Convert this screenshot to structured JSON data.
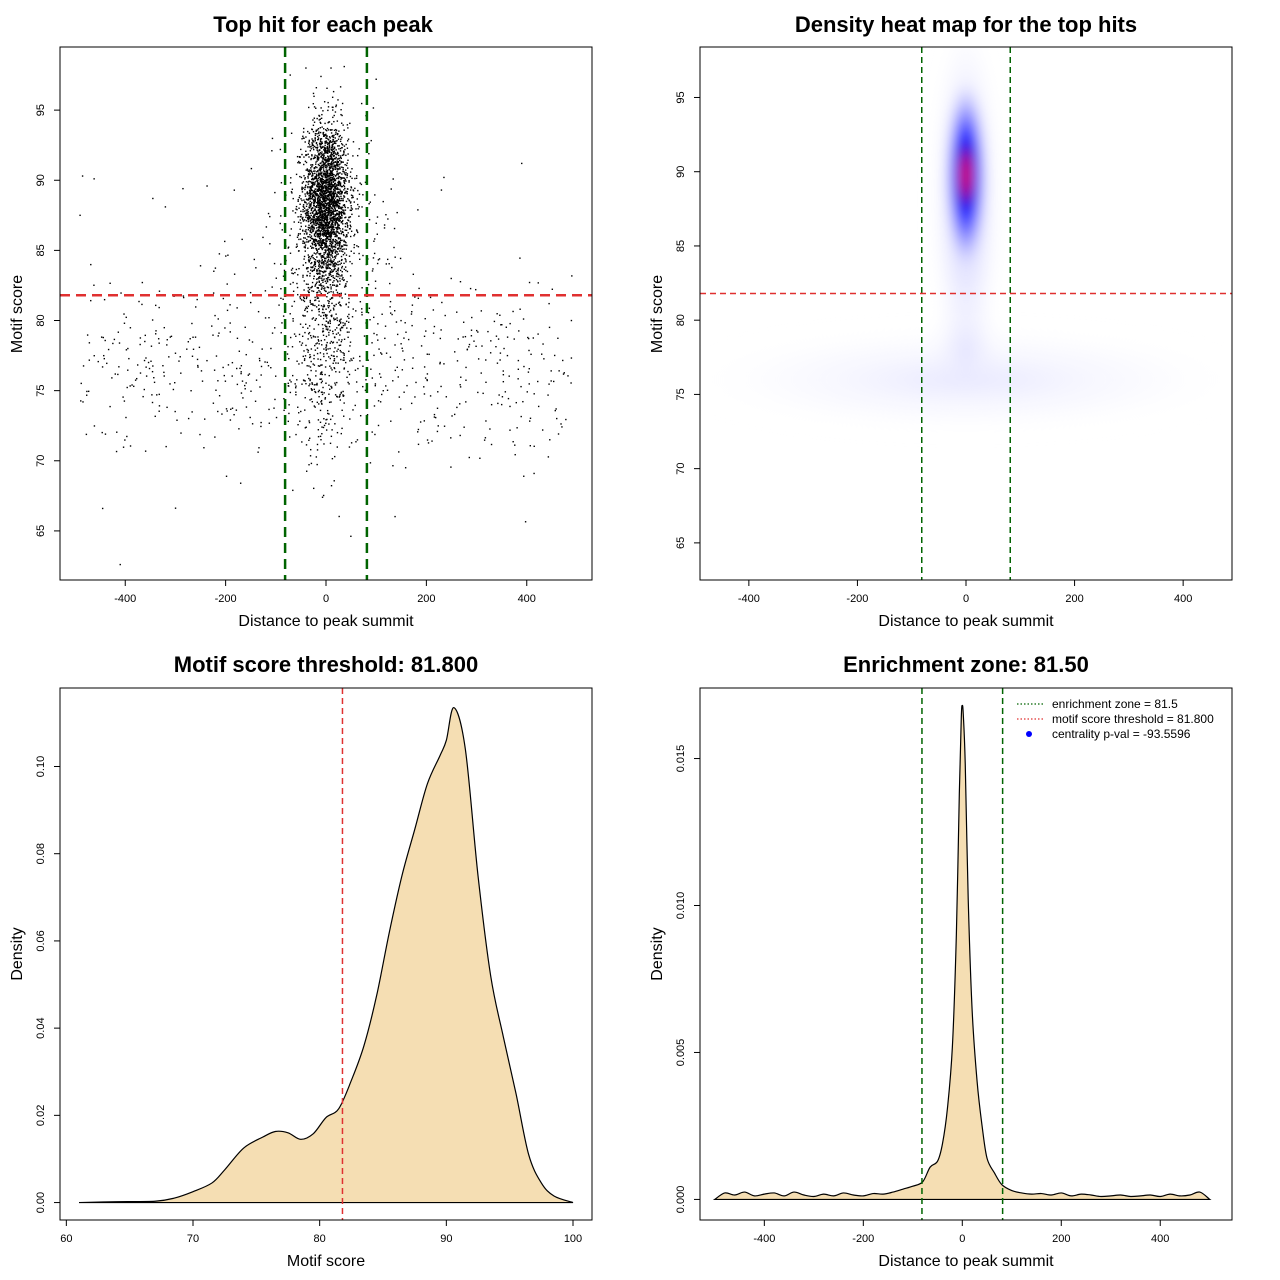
{
  "chart_data": [
    {
      "type": "scatter",
      "title": "Top hit for each peak",
      "xlabel": "Distance to peak summit",
      "ylabel": "Motif score",
      "xlim": [
        -530,
        530
      ],
      "ylim": [
        61.5,
        99.5
      ],
      "xticks": [
        -400,
        -200,
        0,
        200,
        400
      ],
      "yticks": [
        65,
        70,
        75,
        80,
        85,
        90,
        95
      ],
      "vlines": [
        -81.5,
        81.5
      ],
      "hline": 81.8,
      "colors": {
        "points": "#000000",
        "vlines": "#006400",
        "hline": "#e03030"
      },
      "clusters": [
        {
          "count": 2600,
          "x_mean": 0,
          "x_sd": 22,
          "y_mean": 88.5,
          "y_sd": 2.8
        },
        {
          "count": 500,
          "x_mean": 0,
          "x_sd": 30,
          "y_mean": 80,
          "y_sd": 4.5
        },
        {
          "count": 350,
          "x_mean": 0,
          "x_sd": 80,
          "y_mean": 84,
          "y_sd": 4.5
        },
        {
          "count": 600,
          "x_range": [
            -490,
            490
          ],
          "y_mean": 76,
          "y_sd": 3.2
        }
      ],
      "extra_points": [
        [
          -445,
          66.6
        ],
        [
          -410,
          62.6
        ],
        [
          -485,
          90.3
        ],
        [
          -462,
          90.1
        ],
        [
          -490,
          87.5
        ],
        [
          -345,
          88.7
        ],
        [
          -285,
          89.4
        ],
        [
          235,
          90.2
        ],
        [
          390,
          91.2
        ],
        [
          230,
          89.3
        ],
        [
          -320,
          88.1
        ],
        [
          -170,
          68.4
        ],
        [
          -40,
          98
        ],
        [
          10,
          98
        ],
        [
          -10,
          97.4
        ],
        [
          100,
          97.2
        ],
        [
          -250,
          83.9
        ]
      ]
    },
    {
      "type": "heatmap",
      "title": "Density heat map for the top hits",
      "xlabel": "Distance to peak summit",
      "ylabel": "Motif score",
      "xlim": [
        -490,
        490
      ],
      "ylim": [
        62.5,
        98.4
      ],
      "xticks": [
        -400,
        -200,
        0,
        200,
        400
      ],
      "yticks": [
        65,
        70,
        75,
        80,
        85,
        90,
        95
      ],
      "vlines": [
        -81.5,
        81.5
      ],
      "hline": 81.8,
      "color_scale": [
        "#ffffff",
        "#0000ff",
        "#ff0000"
      ],
      "peak": {
        "x": 0,
        "y": 89.5
      },
      "colors": {
        "vlines": "#006400",
        "hline": "#e03030"
      }
    },
    {
      "type": "area",
      "title": "Motif score threshold: 81.800",
      "xlabel": "Motif score",
      "ylabel": "Density",
      "xlim": [
        59.5,
        101.5
      ],
      "ylim": [
        -0.004,
        0.118
      ],
      "xticks": [
        60,
        70,
        80,
        90,
        100
      ],
      "yticks": [
        0.0,
        0.02,
        0.04,
        0.06,
        0.08,
        0.1
      ],
      "ytick_labels": [
        "0.00",
        "0.02",
        "0.04",
        "0.06",
        "0.08",
        "0.10"
      ],
      "vline": 81.8,
      "fill": "#f5deb3",
      "colors": {
        "vline": "#e03030"
      },
      "x": [
        61,
        64,
        67,
        68.5,
        70,
        71.5,
        72.5,
        74,
        75.5,
        76.5,
        77.5,
        78.5,
        79.5,
        80.5,
        81.5,
        82.5,
        83.5,
        84.5,
        85.5,
        86.5,
        87.5,
        88.5,
        89.5,
        90,
        90.6,
        91.5,
        92.5,
        93.5,
        94.5,
        95.5,
        96.5,
        97.5,
        98.5,
        100
      ],
      "y": [
        0.0,
        0.0002,
        0.0003,
        0.001,
        0.0025,
        0.0045,
        0.0075,
        0.0125,
        0.015,
        0.0163,
        0.016,
        0.0145,
        0.0158,
        0.0195,
        0.0215,
        0.028,
        0.036,
        0.0475,
        0.062,
        0.075,
        0.0855,
        0.096,
        0.1025,
        0.106,
        0.1135,
        0.104,
        0.075,
        0.052,
        0.038,
        0.025,
        0.011,
        0.0045,
        0.0015,
        0.0
      ]
    },
    {
      "type": "area",
      "title": "Enrichment zone: 81.50",
      "xlabel": "Distance to peak summit",
      "ylabel": "Density",
      "xlim": [
        -530,
        545
      ],
      "ylim": [
        -0.0007,
        0.0174
      ],
      "xticks": [
        -400,
        -200,
        0,
        200,
        400
      ],
      "yticks": [
        0.0,
        0.005,
        0.01,
        0.015
      ],
      "ytick_labels": [
        "0.000",
        "0.005",
        "0.010",
        "0.015"
      ],
      "vlines": [
        -81.5,
        81.5
      ],
      "fill": "#f5deb3",
      "colors": {
        "vlines": "#006400",
        "threshold": "#e03030",
        "pval": "#0000ff"
      },
      "x": [
        -500,
        -480,
        -460,
        -440,
        -420,
        -400,
        -380,
        -360,
        -340,
        -320,
        -300,
        -280,
        -260,
        -240,
        -220,
        -200,
        -180,
        -160,
        -140,
        -120,
        -100,
        -80,
        -65,
        -50,
        -40,
        -30,
        -20,
        -12,
        -6,
        -2,
        0,
        2,
        6,
        12,
        20,
        30,
        40,
        50,
        65,
        80,
        100,
        120,
        140,
        160,
        180,
        200,
        220,
        240,
        260,
        280,
        300,
        320,
        340,
        360,
        380,
        400,
        420,
        440,
        460,
        480,
        500
      ],
      "y": [
        0.0,
        0.00022,
        0.00015,
        0.00025,
        0.00012,
        0.00018,
        0.00022,
        0.00012,
        0.00025,
        0.00015,
        0.0001,
        0.00018,
        0.00012,
        0.00022,
        0.00015,
        0.00012,
        0.0002,
        0.00018,
        0.00025,
        0.00035,
        0.00045,
        0.0006,
        0.0011,
        0.0013,
        0.0019,
        0.0031,
        0.0052,
        0.009,
        0.0138,
        0.0164,
        0.0168,
        0.0165,
        0.0148,
        0.0102,
        0.0064,
        0.004,
        0.0025,
        0.0014,
        0.0009,
        0.0005,
        0.0003,
        0.00022,
        0.00018,
        0.0002,
        0.00015,
        0.00022,
        0.00012,
        0.00018,
        0.00015,
        0.0001,
        0.00012,
        0.00015,
        0.0001,
        0.00012,
        0.00015,
        0.0001,
        0.00018,
        0.00012,
        0.00015,
        0.00025,
        0.0
      ],
      "legend": [
        {
          "label": "enrichment zone = 81.5",
          "kind": "dotted-line",
          "color": "#006400"
        },
        {
          "label": "motif score threshold = 81.800",
          "kind": "dotted-line",
          "color": "#e03030"
        },
        {
          "label": "centrality p-val = -93.5596",
          "kind": "point",
          "color": "#0000ff"
        }
      ],
      "legend_position": "top-right"
    }
  ]
}
